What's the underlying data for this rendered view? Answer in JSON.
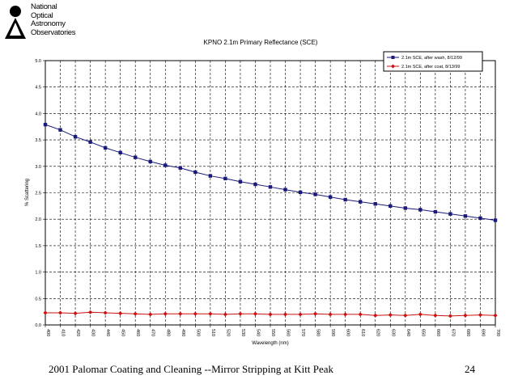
{
  "logo": {
    "lines": [
      "National",
      "Optical",
      "Astronomy",
      "Observatories"
    ]
  },
  "footer": {
    "left": "2001 Palomar Coating and Cleaning --Mirror Stripping at Kitt Peak",
    "page_number": "24"
  },
  "chart_data": {
    "type": "line",
    "title": "KPNO 2.1m Primary Reflectance (SCE)",
    "xlabel": "Wavelength (nm)",
    "ylabel": "% Scattering",
    "xlim": [
      400,
      700
    ],
    "ylim": [
      0,
      5.0
    ],
    "grid": true,
    "legend_position": "top-right",
    "x": [
      400,
      410,
      420,
      430,
      440,
      450,
      460,
      470,
      480,
      490,
      500,
      510,
      520,
      530,
      540,
      550,
      560,
      570,
      580,
      590,
      600,
      610,
      620,
      630,
      640,
      650,
      660,
      670,
      680,
      690,
      700
    ],
    "x_tick_labels": [
      "400",
      "410",
      "420",
      "430",
      "440",
      "450",
      "460",
      "470",
      "480",
      "490",
      "500",
      "510",
      "520",
      "530",
      "540",
      "550",
      "560",
      "570",
      "580",
      "590",
      "600",
      "610",
      "620",
      "630",
      "640",
      "650",
      "660",
      "670",
      "680",
      "690",
      "700"
    ],
    "y_tick_labels": [
      "0.0",
      "0.5",
      "1.0",
      "1.5",
      "2.0",
      "2.5",
      "3.0",
      "3.5",
      "4.0",
      "4.5",
      "5.0"
    ],
    "series": [
      {
        "name": "2.1m SCE, after wash, 8/12/99",
        "color": "#1a1a7a",
        "marker": "square",
        "values": [
          3.79,
          3.69,
          3.56,
          3.46,
          3.35,
          3.26,
          3.17,
          3.09,
          3.02,
          2.97,
          2.89,
          2.82,
          2.77,
          2.71,
          2.66,
          2.61,
          2.56,
          2.51,
          2.47,
          2.42,
          2.37,
          2.33,
          2.29,
          2.25,
          2.21,
          2.18,
          2.14,
          2.1,
          2.06,
          2.02,
          1.98
        ]
      },
      {
        "name": "2.1m SCE, after coat, 8/13/99",
        "color": "#cc1111",
        "marker": "diamond",
        "values": [
          0.23,
          0.23,
          0.22,
          0.24,
          0.23,
          0.22,
          0.21,
          0.2,
          0.21,
          0.21,
          0.21,
          0.21,
          0.2,
          0.21,
          0.21,
          0.2,
          0.2,
          0.2,
          0.21,
          0.2,
          0.2,
          0.2,
          0.18,
          0.19,
          0.18,
          0.2,
          0.18,
          0.17,
          0.18,
          0.19,
          0.18
        ]
      }
    ]
  }
}
